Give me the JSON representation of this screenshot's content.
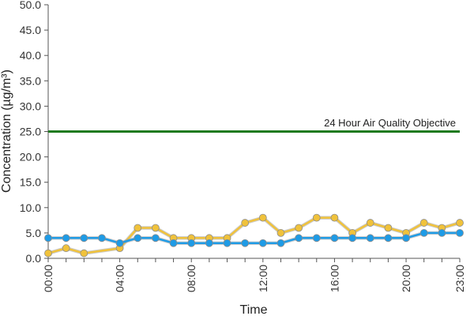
{
  "chart_data": {
    "type": "line",
    "title": "",
    "xlabel": "Time",
    "ylabel": "Concentration (µg/m³)",
    "ylim": [
      0,
      50
    ],
    "yticks": [
      "0.0",
      "5.0",
      "10.0",
      "15.0",
      "20.0",
      "25.0",
      "30.0",
      "35.0",
      "40.0",
      "45.0",
      "50.0"
    ],
    "xlim": [
      0,
      23
    ],
    "xticks": [
      {
        "x": 0,
        "label": "00:00"
      },
      {
        "x": 4,
        "label": "04:00"
      },
      {
        "x": 8,
        "label": "08:00"
      },
      {
        "x": 12,
        "label": "12:00"
      },
      {
        "x": 16,
        "label": "16:00"
      },
      {
        "x": 20,
        "label": "20:00"
      },
      {
        "x": 23,
        "label": "23:00"
      }
    ],
    "grid": false,
    "x": [
      0,
      1,
      2,
      3,
      4,
      5,
      6,
      7,
      8,
      9,
      10,
      11,
      12,
      13,
      14,
      15,
      16,
      17,
      18,
      19,
      20,
      21,
      22,
      23
    ],
    "series": [
      {
        "color": "#f0c23b",
        "points": [
          [
            0,
            1
          ],
          [
            1,
            2
          ],
          [
            2,
            1
          ],
          [
            4,
            2
          ],
          [
            5,
            6
          ],
          [
            6,
            6
          ],
          [
            7,
            4
          ],
          [
            8,
            4
          ],
          [
            9,
            4
          ],
          [
            10,
            4
          ],
          [
            11,
            7
          ],
          [
            12,
            8
          ],
          [
            13,
            5
          ],
          [
            14,
            6
          ],
          [
            15,
            8
          ],
          [
            16,
            8
          ],
          [
            17,
            5
          ],
          [
            18,
            7
          ],
          [
            19,
            6
          ],
          [
            20,
            5
          ],
          [
            21,
            7
          ],
          [
            22,
            6
          ],
          [
            23,
            7
          ]
        ]
      },
      {
        "color": "#1e9be6",
        "points": [
          [
            0,
            4
          ],
          [
            1,
            4
          ],
          [
            2,
            4
          ],
          [
            3,
            4
          ],
          [
            4,
            3
          ],
          [
            5,
            4
          ],
          [
            6,
            4
          ],
          [
            7,
            3
          ],
          [
            8,
            3
          ],
          [
            9,
            3
          ],
          [
            10,
            3
          ],
          [
            11,
            3
          ],
          [
            12,
            3
          ],
          [
            13,
            3
          ],
          [
            14,
            4
          ],
          [
            15,
            4
          ],
          [
            16,
            4
          ],
          [
            17,
            4
          ],
          [
            18,
            4
          ],
          [
            19,
            4
          ],
          [
            20,
            4
          ],
          [
            21,
            5
          ],
          [
            22,
            5
          ],
          [
            23,
            5
          ]
        ]
      }
    ],
    "reference_line": {
      "value": 25,
      "label": "24 Hour Air Quality Objective",
      "color": "#1f7a1f"
    }
  }
}
